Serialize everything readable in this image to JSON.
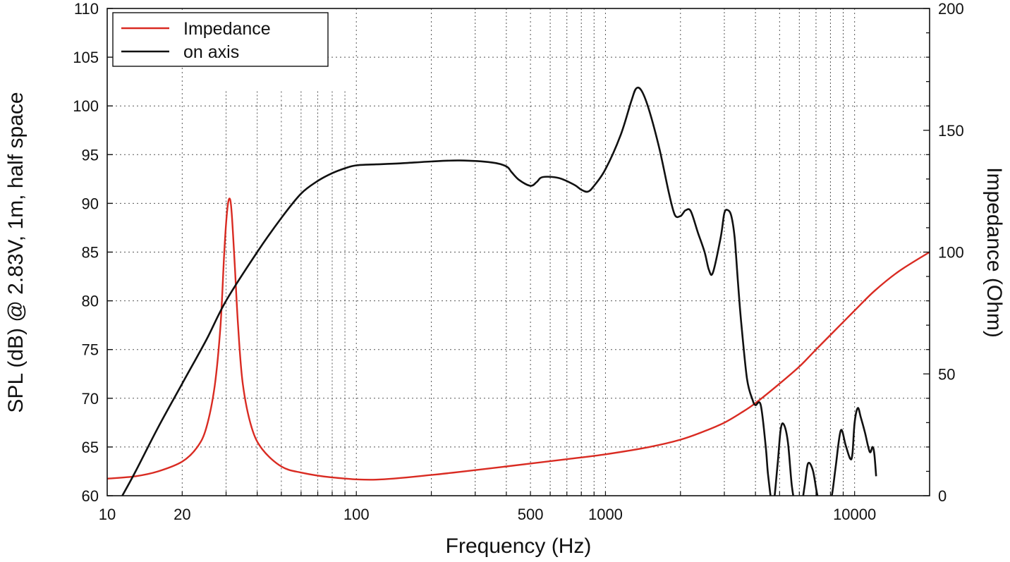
{
  "chart_data": {
    "type": "line",
    "title": "",
    "xlabel": "Frequency (Hz)",
    "ylabel": "SPL (dB) @ 2.83V, 1m, half space",
    "y2label": "Impedance (Ohm)",
    "xscale": "log",
    "xlim": [
      10,
      20000
    ],
    "ylim": [
      60,
      110
    ],
    "y2lim": [
      0,
      200
    ],
    "grid": true,
    "legend_position": "top-left",
    "x_ticks": [
      10,
      20,
      100,
      500,
      1000,
      10000
    ],
    "x_tick_labels": [
      "10",
      "20",
      "100",
      "500",
      "1000",
      "10000"
    ],
    "y_ticks": [
      60,
      65,
      70,
      75,
      80,
      85,
      90,
      95,
      100,
      105,
      110
    ],
    "y_tick_labels": [
      "60",
      "65",
      "70",
      "75",
      "80",
      "85",
      "90",
      "95",
      "100",
      "105",
      "110"
    ],
    "y2_ticks": [
      0,
      50,
      100,
      150,
      200
    ],
    "y2_tick_labels": [
      "0",
      "50",
      "100",
      "150",
      "200"
    ],
    "series": [
      {
        "name": "Impedance",
        "axis": "right",
        "color": "#d92b22",
        "x": [
          10,
          13,
          16,
          20,
          23,
          25,
          27,
          28.5,
          29.5,
          30.3,
          31,
          31.6,
          32.5,
          33.5,
          35,
          38,
          42,
          50,
          60,
          80,
          120,
          200,
          400,
          700,
          1000,
          1500,
          2000,
          2500,
          3000,
          3500,
          4000,
          5000,
          6000,
          7000,
          8000,
          10000,
          12000,
          15000,
          20000
        ],
        "y": [
          7,
          8,
          10,
          14,
          20,
          28,
          45,
          70,
          100,
          117,
          122,
          116,
          95,
          70,
          46,
          28,
          19,
          12,
          9.5,
          7.5,
          6.6,
          8.5,
          12,
          15,
          17,
          20,
          23,
          26.5,
          30,
          34,
          38,
          46,
          53,
          60,
          66,
          76,
          84,
          92,
          100
        ]
      },
      {
        "name": "on axis",
        "axis": "left",
        "color": "#111111",
        "x": [
          11.5,
          13,
          16,
          20,
          25,
          30,
          40,
          50,
          60,
          70,
          80,
          90,
          100,
          120,
          150,
          200,
          260,
          350,
          400,
          420,
          450,
          500,
          530,
          560,
          650,
          750,
          800,
          850,
          900,
          1000,
          1150,
          1270,
          1330,
          1400,
          1500,
          1650,
          1800,
          1900,
          2000,
          2050,
          2100,
          2200,
          2350,
          2500,
          2600,
          2700,
          2900,
          3000,
          3100,
          3200,
          3300,
          3400,
          3500,
          3700,
          3900,
          4000,
          4200,
          4400,
          4500,
          4700,
          4900,
          5050,
          5200,
          5400,
          5600,
          5800,
          6100,
          6300,
          6500,
          6800,
          7100,
          7400,
          7700,
          7900,
          8100,
          8400,
          8800,
          9200,
          9600,
          9800,
          10000,
          10300,
          10600,
          11000,
          11500,
          11800,
          12000,
          12200
        ],
        "y": [
          60,
          62.5,
          67,
          71.5,
          76,
          80,
          85,
          88.5,
          91,
          92.3,
          93.1,
          93.6,
          93.9,
          94,
          94.1,
          94.3,
          94.4,
          94.2,
          93.8,
          93.2,
          92.4,
          91.8,
          92.2,
          92.7,
          92.6,
          91.9,
          91.4,
          91.2,
          91.8,
          93.5,
          97,
          100.5,
          101.8,
          101.5,
          99.5,
          95.5,
          91,
          88.8,
          88.7,
          89,
          89.3,
          89.2,
          87,
          85,
          83.2,
          82.9,
          86.5,
          89,
          89.3,
          88.7,
          86.5,
          82,
          78,
          72,
          69.8,
          69.3,
          69.3,
          65,
          62,
          59,
          63,
          66.8,
          67.3,
          65.5,
          61,
          59,
          59,
          61,
          63.3,
          62.6,
          60,
          59.4,
          59.5,
          59.9,
          60,
          63,
          66.7,
          65.2,
          63.8,
          64.3,
          67.5,
          69,
          68,
          66.5,
          64.5,
          65,
          64.3,
          62
        ]
      }
    ]
  }
}
